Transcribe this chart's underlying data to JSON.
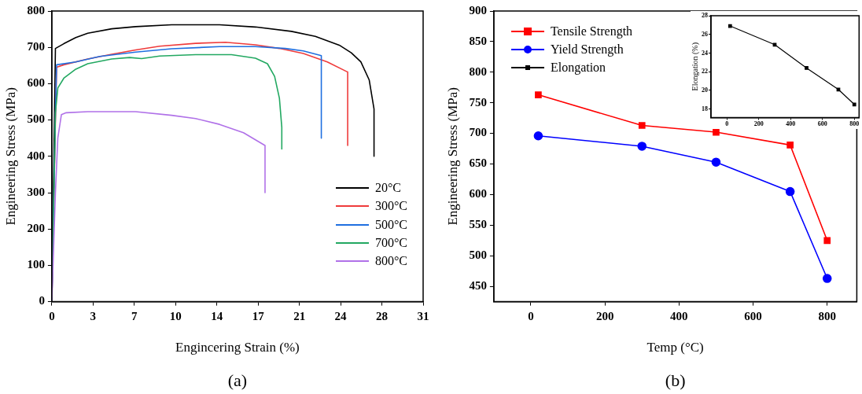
{
  "chart_data": [
    {
      "type": "line",
      "xlabel": "Engincering Strain (%)",
      "ylabel": "Engineering Stress (MPa)",
      "annotations": [
        "(a)"
      ],
      "xlim": [
        0,
        31
      ],
      "xticks": [
        0,
        {
          "value": 3.444,
          "label": "3"
        },
        {
          "value": 6.889,
          "label": "7"
        },
        {
          "value": 10.333,
          "label": "10"
        },
        {
          "value": 13.778,
          "label": "14"
        },
        {
          "value": 17.222,
          "label": "17"
        },
        {
          "value": 20.667,
          "label": "21"
        },
        {
          "value": 24.111,
          "label": "24"
        },
        {
          "value": 27.556,
          "label": "28"
        },
        31
      ],
      "ylim": [
        0,
        800
      ],
      "yticks": [
        0,
        100,
        200,
        300,
        400,
        500,
        600,
        700,
        800
      ],
      "grid": false,
      "legend": "bottom right",
      "marker": "none",
      "line_style": "solid",
      "series": [
        {
          "name": "20°C",
          "color": "#000000",
          "x": [
            0,
            0.15,
            0.3,
            1,
            2,
            3,
            5,
            7,
            10,
            14,
            17,
            20,
            22,
            24,
            25,
            25.8,
            26.5,
            26.9,
            26.9
          ],
          "values": [
            0,
            350,
            697,
            710,
            727,
            739,
            751,
            757,
            762,
            762,
            756,
            744,
            730,
            706,
            685,
            660,
            610,
            530,
            400
          ]
        },
        {
          "name": "300°C",
          "color": "#ef3b3b",
          "x": [
            0,
            0.3,
            0.4,
            1,
            3,
            5,
            7,
            9,
            12,
            14.5,
            17,
            19,
            21,
            23,
            24.7,
            24.7
          ],
          "values": [
            0,
            500,
            645,
            652,
            668,
            681,
            693,
            703,
            711,
            714,
            707,
            697,
            683,
            660,
            632,
            430
          ]
        },
        {
          "name": "500°C",
          "color": "#1f6fe0",
          "x": [
            0,
            0.3,
            0.4,
            2,
            4,
            7,
            10,
            14,
            17,
            19.5,
            21,
            22.5,
            22.5
          ],
          "values": [
            0,
            520,
            652,
            660,
            675,
            687,
            696,
            702,
            702,
            697,
            690,
            677,
            450
          ]
        },
        {
          "name": "700°C",
          "color": "#22a861",
          "x": [
            0,
            0.3,
            0.5,
            1,
            2,
            3,
            5,
            6.5,
            7.5,
            9,
            12,
            15,
            17,
            18,
            18.6,
            19,
            19.2,
            19.2
          ],
          "values": [
            0,
            520,
            588,
            615,
            640,
            655,
            668,
            672,
            669,
            676,
            680,
            680,
            670,
            655,
            620,
            560,
            480,
            420
          ]
        },
        {
          "name": "800°C",
          "color": "#b071e8",
          "x": [
            0,
            0.3,
            0.5,
            0.8,
            1.2,
            3,
            7,
            10,
            12,
            14,
            16,
            17.8,
            17.8
          ],
          "values": [
            0,
            300,
            450,
            515,
            520,
            523,
            523,
            513,
            504,
            488,
            465,
            430,
            300
          ]
        }
      ]
    },
    {
      "type": "line",
      "xlabel": "Temp (°C)",
      "ylabel": "Engineering Stress (MPa)",
      "annotations": [
        "(b)"
      ],
      "xlim": [
        -100,
        880
      ],
      "xticks": [
        0,
        200,
        400,
        600,
        800
      ],
      "ylim": [
        425,
        900
      ],
      "yticks": [
        450,
        500,
        550,
        600,
        650,
        700,
        750,
        800,
        850,
        900
      ],
      "grid": false,
      "legend": "top left",
      "line_style": "solid",
      "series": [
        {
          "name": "Tensile Strength",
          "color": "#ff0000",
          "marker": "square",
          "x": [
            20,
            300,
            500,
            700,
            800
          ],
          "values": [
            763,
            713,
            702,
            681,
            525
          ]
        },
        {
          "name": "Yield Strength",
          "color": "#0000ff",
          "marker": "circle",
          "x": [
            20,
            300,
            500,
            700,
            800
          ],
          "values": [
            696,
            679,
            653,
            605,
            463
          ]
        }
      ]
    },
    {
      "type": "line",
      "ylabel": "Elongation (%)",
      "xlim": [
        -100,
        830
      ],
      "xticks": [
        0,
        200,
        400,
        600,
        800
      ],
      "ylim": [
        17.1,
        28
      ],
      "yticks": [
        18,
        20,
        22,
        24,
        26,
        28
      ],
      "grid": false,
      "marker": "square",
      "line_style": "solid",
      "series": [
        {
          "name": "Elongation",
          "color": "#000000",
          "x": [
            20,
            300,
            500,
            700,
            800
          ],
          "values": [
            26.9,
            24.9,
            22.4,
            20.1,
            18.5
          ]
        }
      ]
    }
  ]
}
